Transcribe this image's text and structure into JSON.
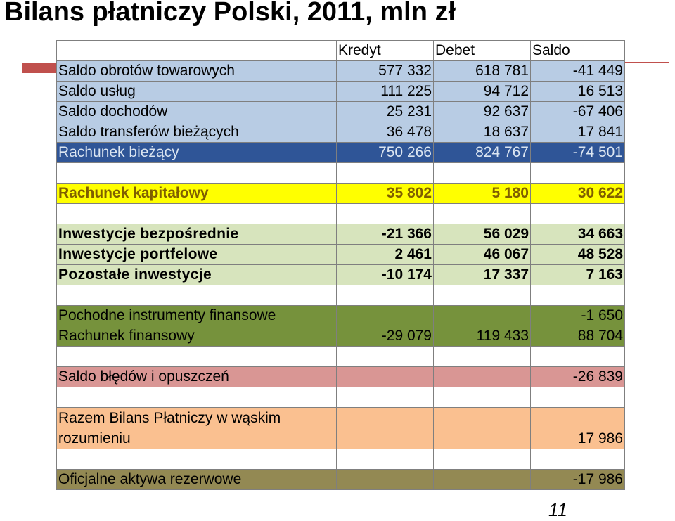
{
  "title": "Bilans płatniczy Polski, 2011, mln zł",
  "columns": [
    "Kredyt",
    "Debet",
    "Saldo"
  ],
  "rows": [
    {
      "label": "Saldo obrotów towarowych",
      "kredyt": "577 332",
      "debet": "618 781",
      "saldo": "-41 449"
    },
    {
      "label": "Saldo usług",
      "kredyt": "111 225",
      "debet": "94 712",
      "saldo": "16 513"
    },
    {
      "label": "Saldo dochodów",
      "kredyt": "25 231",
      "debet": "92 637",
      "saldo": "-67 406"
    },
    {
      "label": "Saldo transferów bieżących",
      "kredyt": "36 478",
      "debet": "18 637",
      "saldo": "17 841"
    },
    {
      "label": "Rachunek bieżący",
      "kredyt": "750 266",
      "debet": "824 767",
      "saldo": "-74 501"
    },
    {
      "label": "Rachunek kapitałowy",
      "kredyt": "35 802",
      "debet": "5 180",
      "saldo": "30 622"
    },
    {
      "label": "Inwestycje bezpośrednie",
      "kredyt": "-21 366",
      "debet": "56 029",
      "saldo": "34 663"
    },
    {
      "label": "Inwestycje portfelowe",
      "kredyt": "2 461",
      "debet": "46 067",
      "saldo": "48 528"
    },
    {
      "label": "Pozostałe inwestycje",
      "kredyt": "-10 174",
      "debet": "17 337",
      "saldo": "7 163"
    },
    {
      "label": "Pochodne instrumenty finansowe",
      "kredyt": "",
      "debet": "",
      "saldo": "-1 650"
    },
    {
      "label": "Rachunek finansowy",
      "kredyt": "-29 079",
      "debet": "119 433",
      "saldo": "88 704"
    },
    {
      "label": "Saldo błędów i opuszczeń",
      "kredyt": "",
      "debet": "",
      "saldo": "-26 839"
    },
    {
      "label": "Razem Bilans Płatniczy w wąskim rozumieniu",
      "kredyt": "",
      "debet": "",
      "saldo": "17 986"
    },
    {
      "label": "Oficjalne aktywa rezerwowe",
      "kredyt": "",
      "debet": "",
      "saldo": "-17 986"
    }
  ],
  "page_number": "11",
  "colors": {
    "accent_red": "#c0504d",
    "blue_rows": "#b8cce4",
    "navy_row": "#2f5597",
    "yellow_row": "#ffff00",
    "green_rows": "#d7e4bd",
    "olive_row": "#76923c",
    "pink_row": "#d99694",
    "peach_row": "#fac090",
    "khaki_row": "#938953"
  }
}
